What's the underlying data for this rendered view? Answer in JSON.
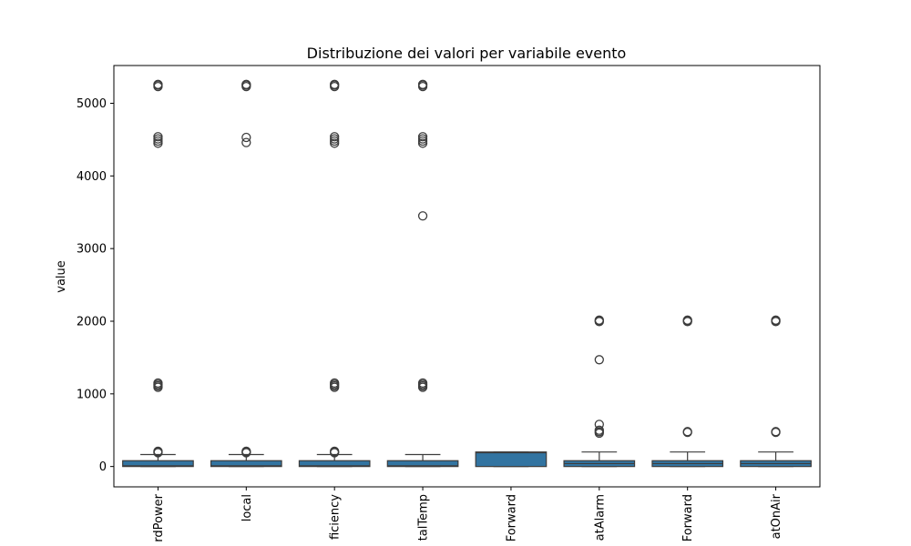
{
  "chart_data": {
    "type": "box",
    "title": "Distribuzione dei valori per variabile evento",
    "xlabel": "",
    "ylabel": "value",
    "ylim": [
      -280,
      5520
    ],
    "yticks": [
      0,
      1000,
      2000,
      3000,
      4000,
      5000
    ],
    "ytick_labels": [
      "0",
      "1000",
      "2000",
      "3000",
      "4000",
      "5000"
    ],
    "grid": false,
    "box_color": "#3274a1",
    "categories": [
      "rdPower",
      "local",
      "ficiency",
      "talTemp",
      "Forward",
      "atAlarm",
      "Forward",
      "atOnAir"
    ],
    "series": [
      {
        "q1": 0,
        "median": 10,
        "q3": 80,
        "whisker_low": 0,
        "whisker_high": 165,
        "outliers": [
          190,
          200,
          210,
          1090,
          1110,
          1130,
          1150,
          4450,
          4480,
          4510,
          4540,
          5230,
          5250,
          5260
        ]
      },
      {
        "q1": 0,
        "median": 10,
        "q3": 80,
        "whisker_low": 0,
        "whisker_high": 165,
        "outliers": [
          190,
          200,
          210,
          4460,
          4530,
          5230,
          5250,
          5260
        ]
      },
      {
        "q1": 0,
        "median": 10,
        "q3": 80,
        "whisker_low": 0,
        "whisker_high": 165,
        "outliers": [
          190,
          200,
          210,
          1090,
          1110,
          1130,
          1150,
          4450,
          4480,
          4510,
          4540,
          5230,
          5250,
          5260
        ]
      },
      {
        "q1": 0,
        "median": 10,
        "q3": 80,
        "whisker_low": 0,
        "whisker_high": 165,
        "outliers": [
          1090,
          1110,
          1130,
          1150,
          3450,
          4450,
          4480,
          4510,
          4540,
          5230,
          5250,
          5260
        ]
      },
      {
        "q1": 0,
        "median": 190,
        "q3": 200,
        "whisker_low": 0,
        "whisker_high": 200,
        "outliers": []
      },
      {
        "q1": 0,
        "median": 40,
        "q3": 80,
        "whisker_low": 0,
        "whisker_high": 200,
        "outliers": [
          460,
          480,
          500,
          580,
          1470,
          1995,
          2005,
          2015
        ]
      },
      {
        "q1": 0,
        "median": 40,
        "q3": 80,
        "whisker_low": 0,
        "whisker_high": 200,
        "outliers": [
          470,
          480,
          1995,
          2005,
          2015
        ]
      },
      {
        "q1": 0,
        "median": 40,
        "q3": 80,
        "whisker_low": 0,
        "whisker_high": 200,
        "outliers": [
          470,
          480,
          1995,
          2005,
          2015
        ]
      }
    ]
  }
}
